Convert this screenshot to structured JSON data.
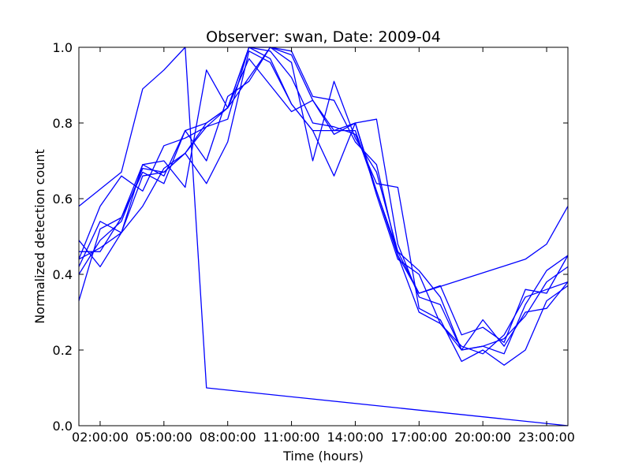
{
  "chart_data": {
    "type": "line",
    "title": "Observer: swan, Date: 2009-04",
    "xlabel": "Time (hours)",
    "ylabel": "Normalized detection count",
    "xlim": [
      1,
      24
    ],
    "ylim": [
      0,
      1
    ],
    "xticks": [
      {
        "value": 2,
        "label": "02:00:00"
      },
      {
        "value": 5,
        "label": "05:00:00"
      },
      {
        "value": 8,
        "label": "08:00:00"
      },
      {
        "value": 11,
        "label": "11:00:00"
      },
      {
        "value": 14,
        "label": "14:00:00"
      },
      {
        "value": 17,
        "label": "17:00:00"
      },
      {
        "value": 20,
        "label": "20:00:00"
      },
      {
        "value": 23,
        "label": "23:00:00"
      }
    ],
    "yticks": [
      {
        "value": 0.0,
        "label": "0.0"
      },
      {
        "value": 0.2,
        "label": "0.2"
      },
      {
        "value": 0.4,
        "label": "0.4"
      },
      {
        "value": 0.6,
        "label": "0.6"
      },
      {
        "value": 0.8,
        "label": "0.8"
      },
      {
        "value": 1.0,
        "label": "1.0"
      }
    ],
    "grid": false,
    "color": "#0000ff",
    "x": [
      1,
      2,
      3,
      4,
      5,
      6,
      7,
      8,
      9,
      10,
      11,
      12,
      13,
      14,
      15,
      16,
      17,
      18,
      19,
      20,
      21,
      22,
      23,
      24
    ],
    "series": [
      {
        "points": [
          [
            1,
            0.58
          ],
          [
            3,
            0.67
          ],
          [
            4,
            0.89
          ],
          [
            5,
            0.94
          ],
          [
            6,
            1.0
          ],
          [
            7,
            0.1
          ],
          [
            24,
            0.0
          ]
        ]
      },
      {
        "values": [
          0.46,
          0.46,
          0.55,
          0.69,
          0.7,
          0.63,
          0.94,
          0.84,
          0.92,
          1.0,
          0.99,
          0.87,
          0.86,
          0.75,
          0.69,
          0.45,
          0.35,
          0.37,
          0.24,
          0.26,
          0.22,
          0.36,
          0.35,
          0.45
        ]
      },
      {
        "values": [
          0.44,
          0.58,
          0.66,
          0.62,
          0.74,
          0.76,
          0.79,
          0.81,
          1.0,
          1.0,
          0.96,
          0.7,
          0.91,
          0.76,
          0.67,
          0.46,
          0.41,
          0.34,
          0.2,
          0.28,
          0.21,
          0.3,
          0.31,
          0.38
        ]
      },
      {
        "values": [
          0.42,
          0.54,
          0.51,
          0.58,
          0.68,
          0.72,
          0.64,
          0.75,
          0.99,
          0.96,
          0.85,
          0.78,
          0.66,
          0.8,
          0.81,
          0.48,
          0.34,
          0.32,
          0.2,
          0.21,
          0.19,
          0.32,
          0.41,
          0.45
        ]
      },
      {
        "values": [
          0.33,
          0.52,
          0.55,
          0.67,
          0.64,
          0.78,
          0.8,
          0.84,
          0.97,
          0.9,
          0.83,
          0.86,
          0.77,
          0.8,
          0.61,
          0.44,
          0.4,
          0.27,
          0.21,
          0.19,
          0.24,
          0.34,
          0.36,
          0.38
        ]
      },
      {
        "values": [
          0.49,
          0.42,
          0.51,
          0.69,
          0.66,
          0.78,
          0.7,
          0.87,
          0.91,
          1.0,
          0.98,
          0.86,
          0.78,
          0.78,
          0.62,
          0.45,
          0.3,
          0.27,
          0.2,
          0.21,
          0.23,
          0.29,
          0.38,
          0.42
        ]
      },
      {
        "values": [
          0.4,
          0.49,
          0.54,
          0.68,
          0.67,
          0.72,
          0.8,
          0.84,
          1.0,
          0.99,
          0.92,
          0.8,
          0.79,
          0.77,
          0.64,
          0.63,
          0.31,
          0.28,
          0.17,
          0.2,
          0.16,
          0.2,
          0.33,
          0.37
        ]
      },
      {
        "points": [
          [
            1,
            0.44
          ],
          [
            2,
            0.47
          ],
          [
            3,
            0.51
          ],
          [
            4,
            0.66
          ],
          [
            5,
            0.67
          ],
          [
            6,
            0.72
          ],
          [
            7,
            0.79
          ],
          [
            8,
            0.84
          ],
          [
            9,
            1.0
          ],
          [
            10,
            0.97
          ],
          [
            11,
            0.85
          ],
          [
            12,
            0.78
          ],
          [
            13,
            0.78
          ],
          [
            14,
            0.8
          ],
          [
            15,
            0.62
          ],
          [
            16,
            0.46
          ],
          [
            17,
            0.35
          ],
          [
            22,
            0.44
          ],
          [
            23,
            0.48
          ],
          [
            24,
            0.58
          ]
        ]
      }
    ]
  }
}
